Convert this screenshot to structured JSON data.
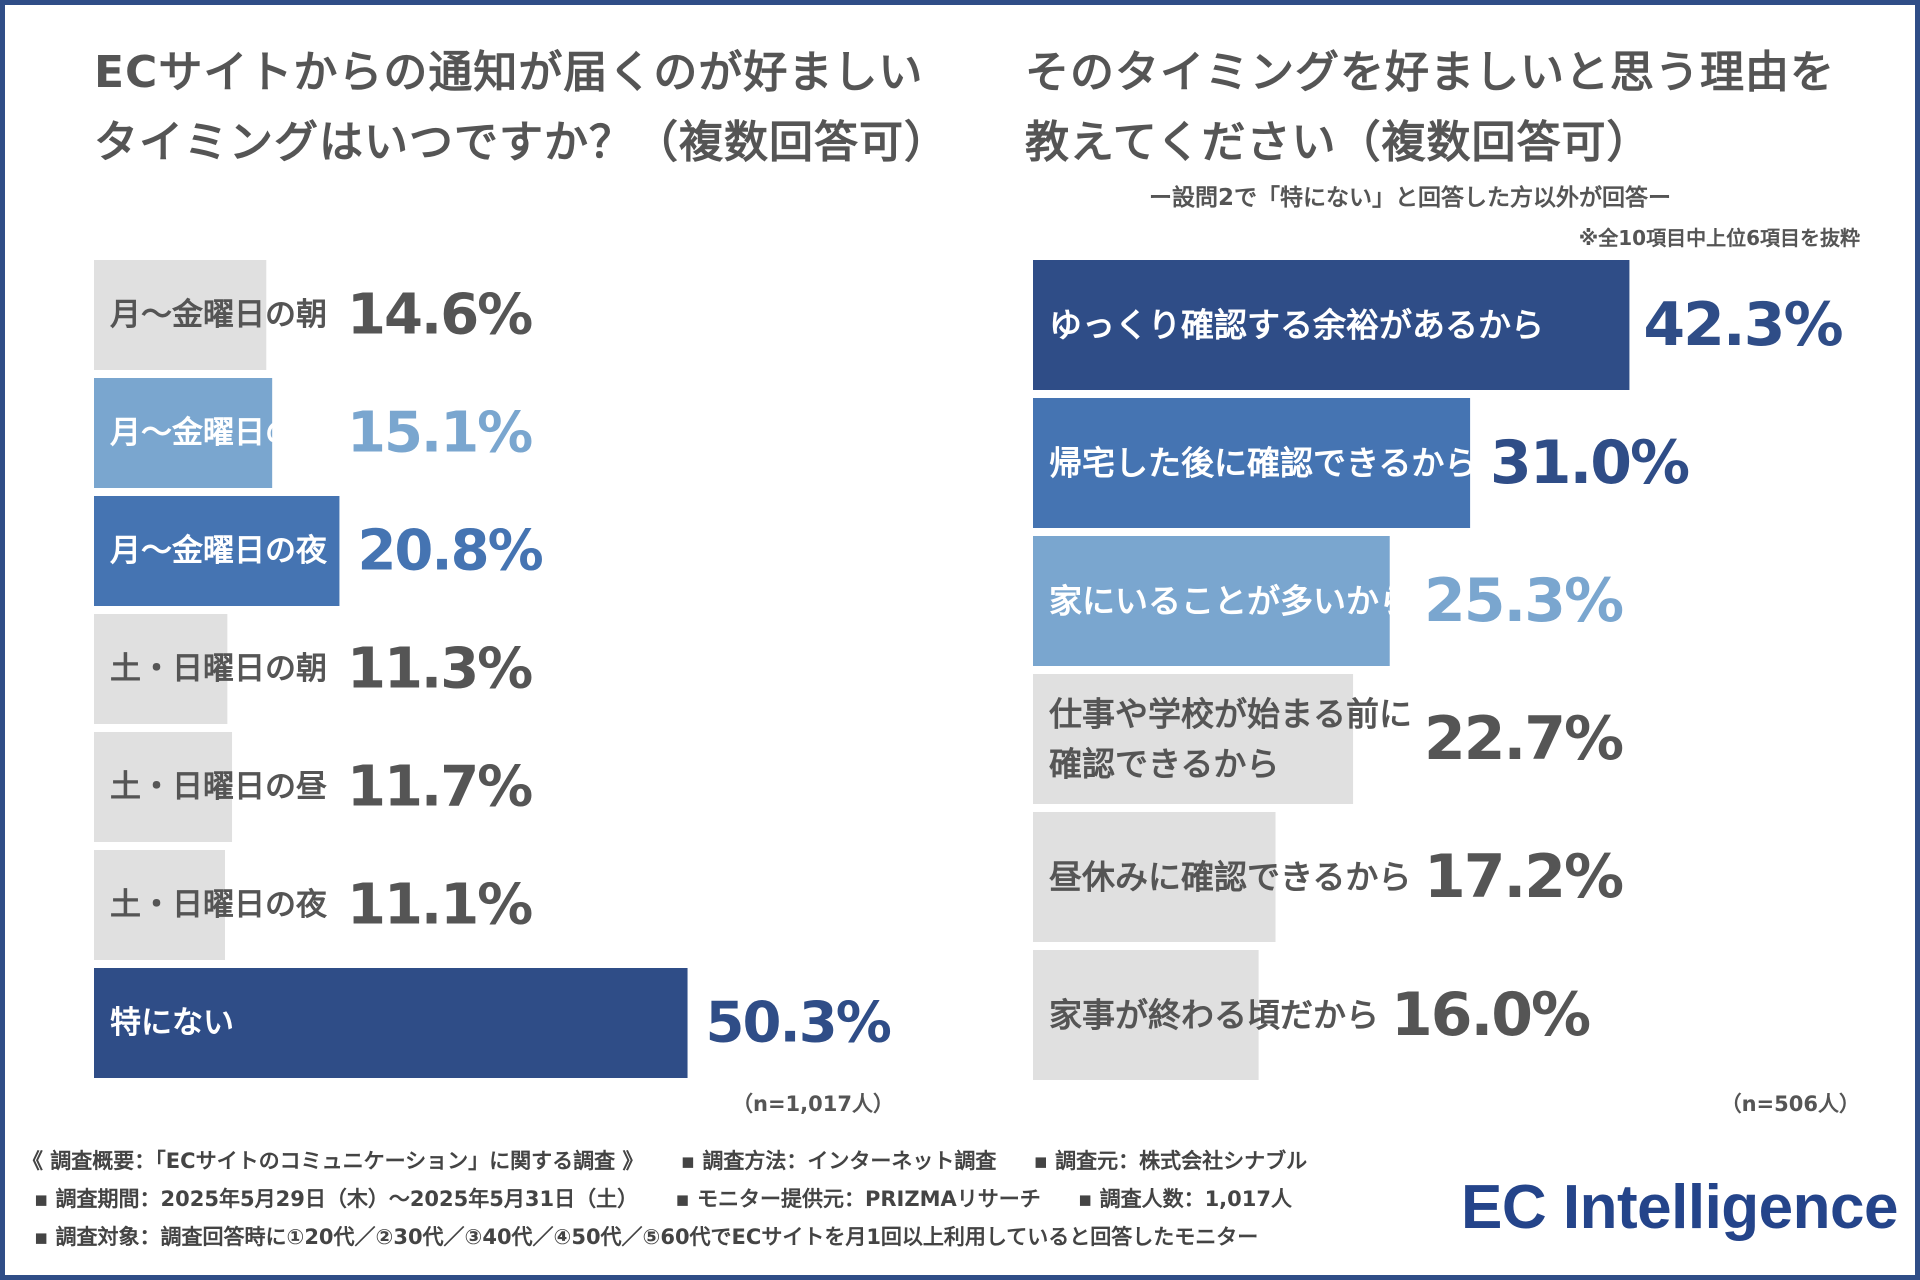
{
  "colors": {
    "navy": "#2f4d87",
    "mid_blue": "#4574b2",
    "light_blue": "#7aa6cf",
    "gray_bar": "#e0e0e0",
    "gray_text": "#555555",
    "logo_blue": "#24448a"
  },
  "left": {
    "title_line1": "ECサイトからの通知が届くのが好ましい",
    "title_line2": "タイミングはいつですか？（複数回答可）",
    "n_label": "（n=1,017人）"
  },
  "right": {
    "title_line1": "そのタイミングを好ましいと思う理由を",
    "title_line2": "教えてください（複数回答可）",
    "subtitle": "ー設問2で「特にない」と回答した方以外が回答ー",
    "note": "※全10項目中上位6項目を抜粋",
    "n_label": "（n=506人）"
  },
  "chart_data": [
    {
      "type": "bar",
      "orientation": "horizontal",
      "title": "ECサイトからの通知が届くのが好ましいタイミングはいつですか？（複数回答可）",
      "unit": "%",
      "categories": [
        "月～金曜日の朝",
        "月～金曜日の昼",
        "月～金曜日の夜",
        "土・日曜日の朝",
        "土・日曜日の昼",
        "土・日曜日の夜",
        "特にない"
      ],
      "values": [
        14.6,
        15.1,
        20.8,
        11.3,
        11.7,
        11.1,
        50.3
      ],
      "value_labels": [
        "14.6%",
        "15.1%",
        "20.8%",
        "11.3%",
        "11.7%",
        "11.1%",
        "50.3%"
      ],
      "bar_colors": [
        "#e0e0e0",
        "#7aa6cf",
        "#4574b2",
        "#e0e0e0",
        "#e0e0e0",
        "#e0e0e0",
        "#2f4d87"
      ],
      "label_colors": [
        "#555555",
        "#ffffff",
        "#ffffff",
        "#555555",
        "#555555",
        "#555555",
        "#ffffff"
      ],
      "value_colors": [
        "#555555",
        "#7aa6cf",
        "#4574b2",
        "#555555",
        "#555555",
        "#555555",
        "#2f4d87"
      ],
      "n": "n=1,017人"
    },
    {
      "type": "bar",
      "orientation": "horizontal",
      "title": "そのタイミングを好ましいと思う理由を教えてください（複数回答可）",
      "unit": "%",
      "categories": [
        "ゆっくり確認する余裕があるから",
        "帰宅した後に確認できるから",
        "家にいることが多いから",
        "仕事や学校が始まる前に確認できるから",
        "昼休みに確認できるから",
        "家事が終わる頃だから"
      ],
      "category_lines": [
        [
          "ゆっくり確認する余裕があるから"
        ],
        [
          "帰宅した後に確認できるから"
        ],
        [
          "家にいることが多いから"
        ],
        [
          "仕事や学校が始まる前に",
          "確認できるから"
        ],
        [
          "昼休みに確認できるから"
        ],
        [
          "家事が終わる頃だから"
        ]
      ],
      "values": [
        42.3,
        31.0,
        25.3,
        22.7,
        17.2,
        16.0
      ],
      "value_labels": [
        "42.3%",
        "31.0%",
        "25.3%",
        "22.7%",
        "17.2%",
        "16.0%"
      ],
      "bar_colors": [
        "#2f4d87",
        "#4574b2",
        "#7aa6cf",
        "#e0e0e0",
        "#e0e0e0",
        "#e0e0e0"
      ],
      "label_colors": [
        "#ffffff",
        "#ffffff",
        "#ffffff",
        "#555555",
        "#555555",
        "#555555"
      ],
      "value_colors": [
        "#2f4d87",
        "#2f4d87",
        "#7aa6cf",
        "#555555",
        "#555555",
        "#555555"
      ],
      "n": "n=506人"
    }
  ],
  "footer": {
    "line1": [
      "《 調査概要：「ECサイトのコミュニケーション」に関する調査 》",
      "▪ 調査方法：インターネット調査",
      "▪ 調査元：株式会社シナブル"
    ],
    "line2": [
      "▪ 調査期間：2025年5月29日（木）～2025年5月31日（土）",
      "▪ モニター提供元：PRIZMAリサーチ",
      "▪ 調査人数：1,017人"
    ],
    "line3": [
      "▪ 調査対象：調査回答時に①20代／②30代／③40代／④50代／⑤60代でECサイトを月1回以上利用していると回答したモニター"
    ]
  },
  "logo": "EC Intelligence"
}
